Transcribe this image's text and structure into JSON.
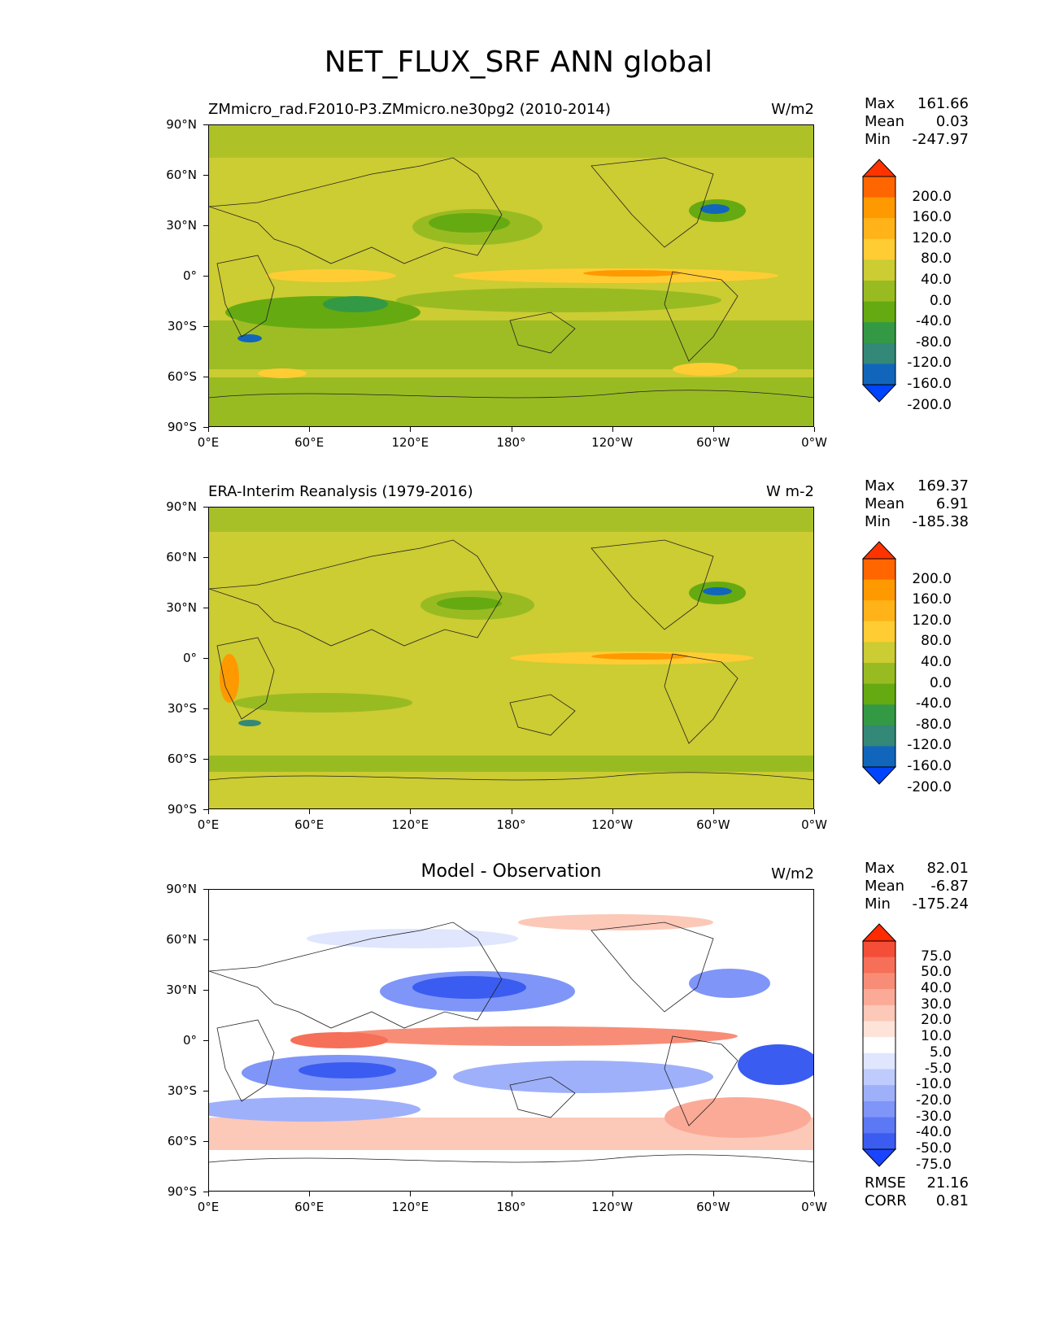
{
  "title": "NET_FLUX_SRF ANN global",
  "axes": {
    "lat_labels": [
      "90°N",
      "60°N",
      "30°N",
      "0°",
      "30°S",
      "60°S",
      "90°S"
    ],
    "lon_labels": [
      "0°E",
      "60°E",
      "120°E",
      "180°",
      "120°W",
      "60°W",
      "0°W"
    ]
  },
  "panels": [
    {
      "title": "ZMmicro_rad.F2010-P3.ZMmicro.ne30pg2 (2010-2014)",
      "units": "W/m2",
      "stats": [
        [
          "Max",
          "161.66"
        ],
        [
          "Mean",
          "0.03"
        ],
        [
          "Min",
          "-247.97"
        ]
      ],
      "colorbar": {
        "labels": [
          "200.0",
          "160.0",
          "120.0",
          "80.0",
          "40.0",
          "0.0",
          "-40.0",
          "-80.0",
          "-120.0",
          "-160.0",
          "-200.0"
        ],
        "colors": [
          "#ff3300",
          "#ff6600",
          "#ff9900",
          "#ffb319",
          "#ffcc33",
          "#cccc33",
          "#99bb22",
          "#66aa11",
          "#339944",
          "#338877",
          "#1166bb",
          "#0044ff"
        ]
      }
    },
    {
      "title": "ERA-Interim Reanalysis (1979-2016)",
      "units": "W m-2",
      "stats": [
        [
          "Max",
          "169.37"
        ],
        [
          "Mean",
          "6.91"
        ],
        [
          "Min",
          "-185.38"
        ]
      ],
      "colorbar": {
        "labels": [
          "200.0",
          "160.0",
          "120.0",
          "80.0",
          "40.0",
          "0.0",
          "-40.0",
          "-80.0",
          "-120.0",
          "-160.0",
          "-200.0"
        ],
        "colors": [
          "#ff3300",
          "#ff6600",
          "#ff9900",
          "#ffb319",
          "#ffcc33",
          "#cccc33",
          "#99bb22",
          "#66aa11",
          "#339944",
          "#338877",
          "#1166bb",
          "#0044ff"
        ]
      }
    },
    {
      "title": "Model - Observation",
      "units": "W/m2",
      "stats": [
        [
          "Max",
          "82.01"
        ],
        [
          "Mean",
          "-6.87"
        ],
        [
          "Min",
          "-175.24"
        ]
      ],
      "extra_stats": [
        [
          "RMSE",
          "21.16"
        ],
        [
          "CORR",
          "0.81"
        ]
      ],
      "colorbar": {
        "labels": [
          "75.0",
          "50.0",
          "40.0",
          "30.0",
          "20.0",
          "10.0",
          "5.0",
          "-5.0",
          "-10.0",
          "-20.0",
          "-30.0",
          "-40.0",
          "-50.0",
          "-75.0"
        ],
        "colors": [
          "#ff2a00",
          "#f44e38",
          "#f66f58",
          "#f88d77",
          "#faaa97",
          "#fcc8b8",
          "#fee3d9",
          "#ffffff",
          "#dfe6fe",
          "#bfcbfc",
          "#9fb0fa",
          "#7f95f8",
          "#5c78f4",
          "#3a5cf0",
          "#1a44ff"
        ]
      }
    }
  ],
  "chart_data": [
    {
      "type": "heatmap",
      "title": "ZMmicro_rad.F2010-P3.ZMmicro.ne30pg2 (2010-2014)",
      "units": "W/m2",
      "xlim": [
        0,
        360
      ],
      "ylim": [
        -90,
        90
      ],
      "stats": {
        "max": 161.66,
        "mean": 0.03,
        "min": -247.97
      },
      "levels": [
        -200,
        -160,
        -120,
        -80,
        -40,
        0,
        40,
        80,
        120,
        160,
        200
      ]
    },
    {
      "type": "heatmap",
      "title": "ERA-Interim Reanalysis (1979-2016)",
      "units": "W m-2",
      "xlim": [
        0,
        360
      ],
      "ylim": [
        -90,
        90
      ],
      "stats": {
        "max": 169.37,
        "mean": 6.91,
        "min": -185.38
      },
      "levels": [
        -200,
        -160,
        -120,
        -80,
        -40,
        0,
        40,
        80,
        120,
        160,
        200
      ]
    },
    {
      "type": "heatmap",
      "title": "Model - Observation",
      "units": "W/m2",
      "xlim": [
        0,
        360
      ],
      "ylim": [
        -90,
        90
      ],
      "stats": {
        "max": 82.01,
        "mean": -6.87,
        "min": -175.24,
        "rmse": 21.16,
        "corr": 0.81
      },
      "levels": [
        -75,
        -50,
        -40,
        -30,
        -20,
        -10,
        -5,
        5,
        10,
        20,
        30,
        40,
        50,
        75
      ]
    }
  ]
}
